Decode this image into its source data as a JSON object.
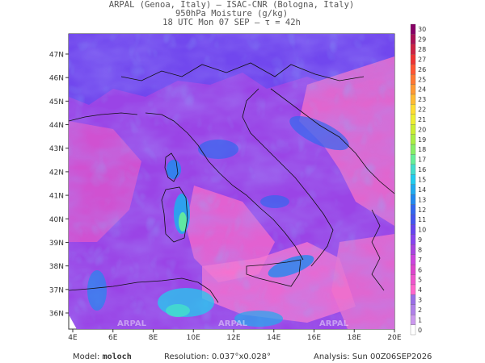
{
  "header": {
    "line1": "ARPAL (Genoa, Italy)  —  ISAC-CNR (Bologna, Italy)",
    "line2": "950hPa Moisture (g/kg)",
    "line3": "18 UTC Mon 07 SEP  —  τ = 42h"
  },
  "map": {
    "lat_ticks": [
      "36N",
      "37N",
      "38N",
      "39N",
      "40N",
      "41N",
      "42N",
      "43N",
      "44N",
      "45N",
      "46N",
      "47N"
    ],
    "lon_ticks": [
      "4E",
      "6E",
      "8E",
      "10E",
      "12E",
      "14E",
      "16E",
      "18E",
      "20E"
    ],
    "watermark": "ARPAL"
  },
  "colorbar": {
    "values": [
      "0",
      "1",
      "2",
      "3",
      "4",
      "5",
      "6",
      "7",
      "8",
      "9",
      "10",
      "11",
      "12",
      "13",
      "14",
      "15",
      "16",
      "17",
      "18",
      "19",
      "20",
      "21",
      "22",
      "23",
      "24",
      "25",
      "26",
      "27",
      "28",
      "29",
      "30"
    ],
    "colors": [
      "#ffffff",
      "#cc99ee",
      "#b080e8",
      "#9a6ee6",
      "#ff66cc",
      "#ee55cc",
      "#dd44cc",
      "#cc44dd",
      "#a844e0",
      "#8844ee",
      "#6644ee",
      "#4455ee",
      "#3366ee",
      "#2288ee",
      "#22aaee",
      "#22ccee",
      "#44ddcc",
      "#66ee99",
      "#88ee66",
      "#aaee44",
      "#ccee33",
      "#eeee33",
      "#ffdd33",
      "#ffbb33",
      "#ff9933",
      "#ff7733",
      "#ff5533",
      "#ee3333",
      "#cc2244",
      "#aa1155",
      "#880066"
    ]
  },
  "footer": {
    "model_label": "Model:",
    "model_value": "moloch",
    "resolution_label": "Resolution:",
    "resolution_value": "0.037°x0.028°",
    "analysis_label": "Analysis:",
    "analysis_value": "Sun 00Z06SEP2026"
  }
}
